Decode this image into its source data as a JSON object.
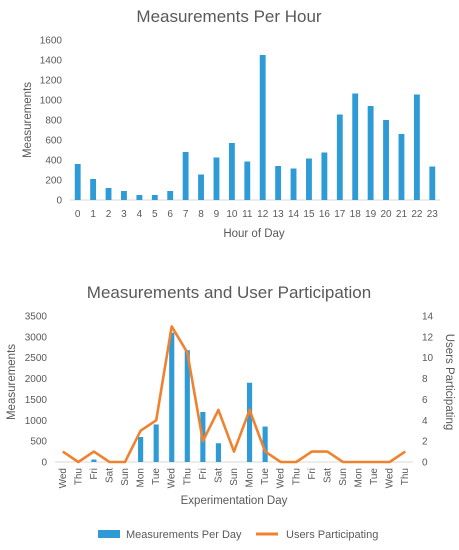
{
  "chart_data": [
    {
      "type": "bar",
      "title": "Measurements Per Hour",
      "xlabel": "Hour of Day",
      "ylabel": "Measurements",
      "ylim": [
        0,
        1600
      ],
      "yticks": [
        "0",
        "200",
        "400",
        "600",
        "800",
        "1000",
        "1200",
        "1400",
        "1600"
      ],
      "categories": [
        "0",
        "1",
        "2",
        "3",
        "4",
        "5",
        "6",
        "7",
        "8",
        "9",
        "10",
        "11",
        "12",
        "13",
        "14",
        "15",
        "16",
        "17",
        "18",
        "19",
        "20",
        "21",
        "22",
        "23"
      ],
      "values": [
        360,
        210,
        120,
        90,
        50,
        50,
        90,
        480,
        255,
        425,
        570,
        385,
        1450,
        340,
        315,
        415,
        475,
        855,
        1065,
        940,
        800,
        660,
        1055,
        335
      ],
      "color": "#2E9BD6",
      "grid": false
    },
    {
      "type": "bar+line",
      "title": "Measurements and User Participation",
      "xlabel": "Experimentation Day",
      "ylabel": "Measurements",
      "y2label": "Users Participating",
      "ylim": [
        0,
        3500
      ],
      "y2lim": [
        0,
        14
      ],
      "yticks": [
        "0",
        "500",
        "1000",
        "1500",
        "2000",
        "2500",
        "3000",
        "3500"
      ],
      "y2ticks": [
        "0",
        "2",
        "4",
        "6",
        "8",
        "10",
        "12",
        "14"
      ],
      "categories": [
        "Wed",
        "Thu",
        "Fri",
        "Sat",
        "Sun",
        "Mon",
        "Tue",
        "Wed",
        "Thu",
        "Fri",
        "Sat",
        "Sun",
        "Mon",
        "Tue",
        "Wed",
        "Thu",
        "Fri",
        "Sat",
        "Sun",
        "Mon",
        "Tue",
        "Wed",
        "Thu"
      ],
      "series": [
        {
          "name": "Measurements Per Day",
          "kind": "bar",
          "axis": "left",
          "color": "#2E9BD6",
          "values": [
            0,
            0,
            60,
            0,
            0,
            600,
            900,
            3100,
            2680,
            1200,
            450,
            0,
            1900,
            850,
            0,
            0,
            0,
            0,
            0,
            0,
            0,
            0,
            0
          ]
        },
        {
          "name": "Users Participating",
          "kind": "line",
          "axis": "right",
          "color": "#F0822F",
          "values": [
            1,
            0,
            1,
            0,
            0,
            3,
            4,
            13,
            10.5,
            2,
            5,
            1,
            5,
            1,
            0,
            0,
            1,
            1,
            0,
            0,
            0,
            0,
            1
          ]
        }
      ],
      "legend": "bottom",
      "grid": false
    }
  ]
}
